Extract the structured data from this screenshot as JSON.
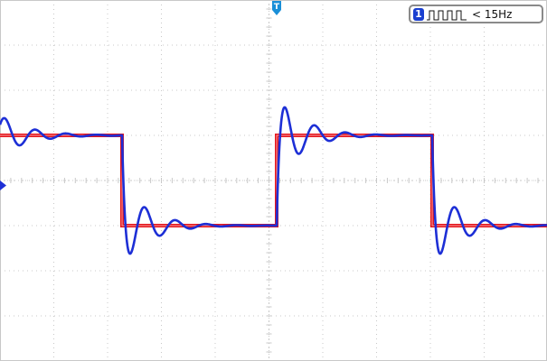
{
  "measurement": {
    "channel_label": "1",
    "frequency_text": "< 15Hz",
    "waveform_icon": "square-pulse-icon"
  },
  "markers": {
    "trigger_label": "T",
    "trigger_icon": "trigger-marker-icon",
    "ground_icon": "ground-level-marker-icon"
  },
  "colors": {
    "background": "#ffffff",
    "grid": "#c8c8c8",
    "input_trace": "#e4141b",
    "output_trace": "#1d2fd6",
    "channel_badge": "#1a3fd0"
  },
  "chart_data": {
    "type": "line",
    "grid": true,
    "series": [
      {
        "key": "square_input",
        "shape": "square",
        "high": 1,
        "low": -1,
        "period_divisions": 6,
        "first_fall_div": 2.25
      },
      {
        "key": "ringing_output",
        "shape": "damped-ringing-square",
        "high": 1,
        "low": -1,
        "overshoot": 1.0,
        "ringing_decay_divisions": 0.5
      }
    ]
  }
}
